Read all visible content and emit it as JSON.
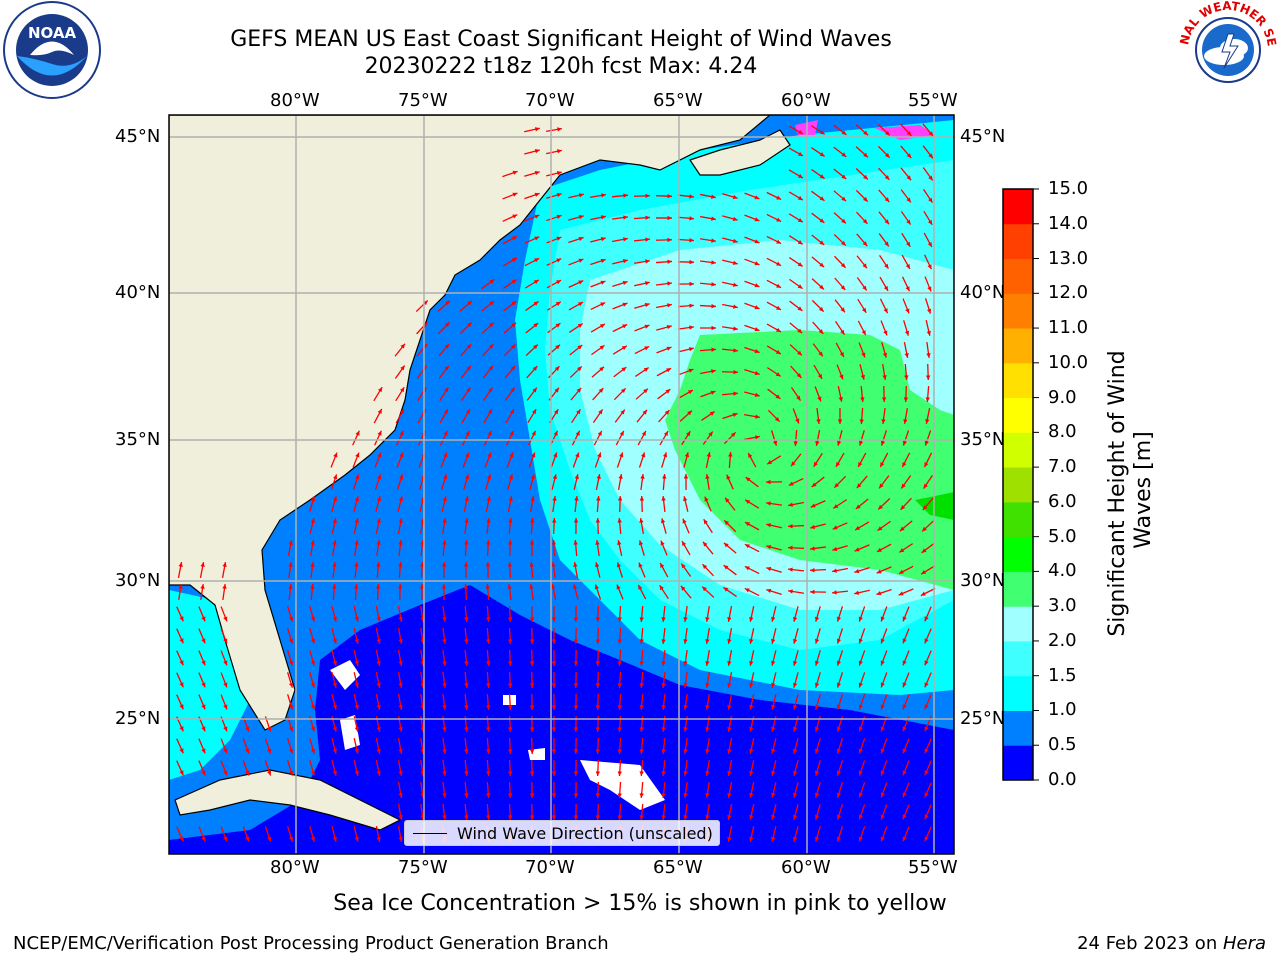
{
  "title": {
    "line1": "GEFS MEAN US East Coast Significant Height of Wind Waves",
    "line2": "20230222 t18z 120h fcst   Max: 4.24"
  },
  "map": {
    "lon_labels": [
      "80°W",
      "75°W",
      "70°W",
      "65°W",
      "60°W",
      "55°W"
    ],
    "lat_labels": [
      "45°N",
      "40°N",
      "35°N",
      "30°N",
      "25°N"
    ],
    "extent": {
      "lon_min": -85,
      "lon_max": -54.3,
      "lat_min": 20,
      "lat_max": 46
    },
    "gridlines": true,
    "legend_label": "Wind Wave Direction (unscaled)",
    "arrow_color": "#ff0000",
    "land_color": "#efefdc"
  },
  "colorbar": {
    "title": "Significant Height of Wind Waves [m]",
    "tick_labels": [
      "0.0",
      "0.5",
      "1.0",
      "1.5",
      "2.0",
      "3.0",
      "4.0",
      "5.0",
      "6.0",
      "7.0",
      "8.0",
      "9.0",
      "10.0",
      "11.0",
      "12.0",
      "13.0",
      "14.0",
      "15.0"
    ],
    "colors": [
      "#0000ff",
      "#0080ff",
      "#00ffff",
      "#40ffff",
      "#a0ffff",
      "#40ff70",
      "#00ff00",
      "#40e000",
      "#a0e000",
      "#d0ff00",
      "#ffff00",
      "#ffe000",
      "#ffb000",
      "#ff8000",
      "#ff6000",
      "#ff4000",
      "#ff0000"
    ]
  },
  "logos": {
    "left": "NOAA",
    "right": "NATIONAL WEATHER SERVICE"
  },
  "note": "Sea Ice Concentration > 15% is shown in pink to yellow",
  "footer": {
    "left": "NCEP/EMC/Verification Post Processing Product Generation Branch",
    "right_date": "24 Feb 2023 on ",
    "right_host": "Hera"
  }
}
